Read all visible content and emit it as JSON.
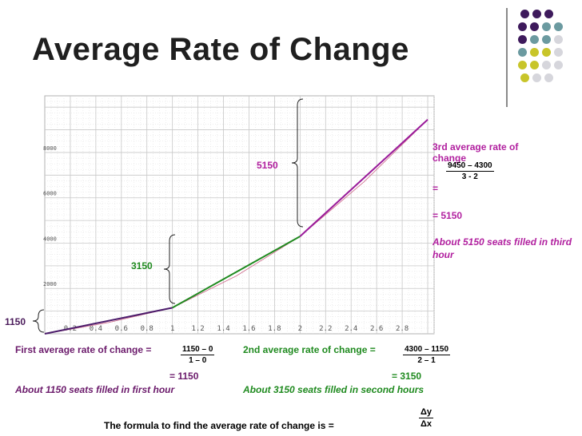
{
  "title": "Average Rate of Change",
  "decor_colors": {
    "purple": "#3e1a5c",
    "teal": "#6b9aa0",
    "olive": "#c8c52a",
    "gray": "#d6d6dc"
  },
  "chart_data": {
    "type": "line",
    "x_ticks": [
      "0.2",
      "0.4",
      "0.6",
      "0.8",
      "1",
      "1.2",
      "1.4",
      "1.6",
      "1.8",
      "2",
      "2.2",
      "2.4",
      "2.6",
      "2.8"
    ],
    "y_ticks": [
      "2000",
      "4000",
      "6000",
      "8000"
    ],
    "xlim": [
      0,
      3.05
    ],
    "ylim": [
      0,
      10500
    ],
    "grid": true,
    "segments": [
      {
        "x": [
          0,
          1
        ],
        "y": [
          0,
          1150
        ],
        "color": "#4a1a6a"
      },
      {
        "x": [
          1,
          2
        ],
        "y": [
          1150,
          4300
        ],
        "color": "#1f8a1f"
      },
      {
        "x": [
          2,
          3
        ],
        "y": [
          4300,
          9450
        ],
        "color": "#9a1a9a"
      }
    ],
    "curve": {
      "x": [
        0,
        0.5,
        1,
        1.5,
        2,
        2.5,
        3
      ],
      "y": [
        0,
        500,
        1150,
        2550,
        4300,
        6700,
        9450
      ],
      "color": "#d07090"
    },
    "annotations": {
      "y_label_1150": "1150",
      "rise_3150": "3150",
      "rise_5150": "5150"
    }
  },
  "first": {
    "label": "First average rate of change =",
    "num": "1150 – 0",
    "den": "1 – 0",
    "result": "=  1150",
    "note": "About 1150 seats filled in first hour"
  },
  "second": {
    "label": "2nd average rate of change =",
    "num": "4300 – 1150",
    "den": "2 – 1",
    "result": "= 3150",
    "note": "About 3150 seats filled in second hours"
  },
  "third": {
    "label": "3rd average rate of change",
    "num": "9450 – 4300",
    "den": "3 - 2",
    "eq": "=",
    "result": "= 5150",
    "note": "About 5150 seats filled in third hour"
  },
  "formula": {
    "text": "The formula to find the average rate of change is =",
    "num": "Δy",
    "den": "Δx"
  }
}
